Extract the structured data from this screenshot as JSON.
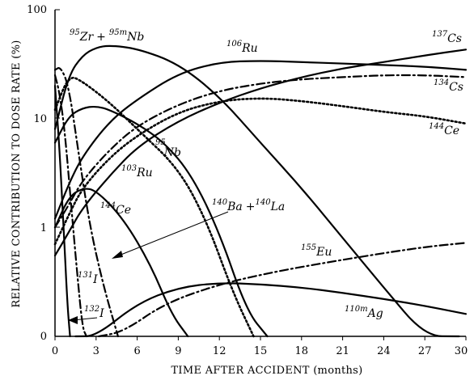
{
  "chart_data": {
    "type": "line",
    "title": "",
    "xlabel": "TIME AFTER ACCIDENT (months)",
    "ylabel": "RELATIVE CONTRIBUTION TO DOSE RATE (%)",
    "xlim": [
      0,
      30
    ],
    "ylim": [
      0,
      100
    ],
    "x_ticks": [
      "0",
      "3",
      "6",
      "9",
      "12",
      "15",
      "18",
      "21",
      "24",
      "27",
      "30"
    ],
    "y_ticks": [
      "0",
      "1",
      "10",
      "100"
    ],
    "y_scale": "log",
    "grid": false,
    "legend": "none",
    "series": [
      {
        "name": "137Cs",
        "label_sup": "137",
        "label_el": "Cs",
        "style": "solid",
        "x": [
          0,
          1,
          2,
          4,
          6,
          9,
          12,
          15,
          18,
          21,
          24,
          27,
          30
        ],
        "y": [
          0.55,
          0.9,
          1.5,
          3.0,
          5.5,
          9.5,
          14,
          19,
          24,
          29,
          33,
          38,
          43
        ]
      },
      {
        "name": "134Cs",
        "label_sup": "134",
        "label_el": "Cs",
        "style": "dashdot",
        "x": [
          0,
          1,
          2,
          4,
          6,
          9,
          12,
          15,
          18,
          21,
          24,
          27,
          30
        ],
        "y": [
          1.0,
          1.6,
          2.7,
          5.2,
          8.6,
          13.5,
          18,
          21,
          23,
          24,
          25,
          25,
          24
        ]
      },
      {
        "name": "144Ce",
        "label_sup": "144",
        "label_el": "Ce",
        "style": "dotted",
        "x": [
          0,
          1,
          2,
          4,
          6,
          9,
          12,
          15,
          18,
          21,
          24,
          27,
          30
        ],
        "y": [
          0.7,
          1.3,
          2.3,
          4.4,
          7.0,
          11.5,
          14.5,
          15.5,
          14.5,
          13,
          11.5,
          10.5,
          9
        ]
      },
      {
        "name": "106Ru",
        "label_sup": "106",
        "label_el": "Ru",
        "style": "solid",
        "x": [
          0,
          1,
          2,
          4,
          6,
          9,
          12,
          15,
          18,
          21,
          24,
          27,
          30
        ],
        "y": [
          1.2,
          2.5,
          4.5,
          9.5,
          15,
          26,
          33,
          34,
          33,
          32,
          31,
          30,
          28
        ]
      },
      {
        "name": "95Zr + 95mNb",
        "label_sup": "95",
        "label_el": "Zr",
        "style": "solid",
        "x": [
          0,
          1,
          2,
          3,
          4,
          6,
          9,
          12,
          15,
          18,
          21,
          24,
          27,
          29.5
        ],
        "y": [
          8,
          25,
          38,
          45,
          47,
          44,
          32,
          16,
          6,
          2.3,
          0.8,
          0.28,
          0.1,
          0.045
        ]
      },
      {
        "name": "95Nb",
        "label_sup": "95",
        "label_el": "Nb",
        "style": "dotted",
        "x": [
          0,
          1,
          2,
          4,
          6,
          9,
          11,
          13,
          14.5
        ],
        "y": [
          12,
          25,
          22,
          14,
          8,
          3.5,
          1.2,
          0.25,
          0.045
        ]
      },
      {
        "name": "103Ru",
        "label_sup": "103",
        "label_el": "Ru",
        "style": "solid",
        "x": [
          0,
          1,
          2,
          3,
          4,
          6,
          8,
          10,
          12,
          14,
          15.5
        ],
        "y": [
          6,
          10.5,
          12.5,
          13,
          12,
          9,
          6,
          3,
          0.9,
          0.17,
          0.045
        ]
      },
      {
        "name": "144Ce-small",
        "label_sup": "144",
        "label_el": "Ce",
        "style": "solid",
        "x": [
          0,
          1,
          2,
          3,
          5,
          7,
          8.5,
          9.7
        ],
        "y": [
          1.0,
          1.9,
          2.3,
          2.2,
          1.2,
          0.45,
          0.16,
          0.045
        ]
      },
      {
        "name": "140Ba + 140La",
        "label_sup": "140",
        "label_el": "Ba",
        "style": "dashdot",
        "x": [
          0,
          0.4,
          1,
          1.7,
          2.5,
          3.5,
          4.6
        ],
        "y": [
          28,
          30,
          20,
          5,
          1.1,
          0.3,
          0.045
        ]
      },
      {
        "name": "131I",
        "label_sup": "131",
        "label_el": "I",
        "style": "dashdot",
        "x": [
          0,
          0.3,
          0.7,
          1.2,
          1.6,
          2,
          2.3
        ],
        "y": [
          25,
          18,
          8,
          1.5,
          0.4,
          0.12,
          0.045
        ]
      },
      {
        "name": "132I",
        "label_sup": "132",
        "label_el": "I",
        "style": "solid",
        "x": [
          0,
          0.3,
          0.6,
          0.9,
          1.1
        ],
        "y": [
          20,
          6,
          1.2,
          0.2,
          0.045
        ]
      },
      {
        "name": "155Eu",
        "label_sup": "155",
        "label_el": "Eu",
        "style": "dashdot",
        "x": [
          3.2,
          5,
          8,
          12,
          16,
          20,
          24,
          27,
          30
        ],
        "y": [
          0.045,
          0.11,
          0.2,
          0.3,
          0.39,
          0.48,
          0.58,
          0.66,
          0.72
        ]
      },
      {
        "name": "110mAg",
        "label_sup": "110m",
        "label_el": "Ag",
        "style": "solid",
        "x": [
          1.5,
          3,
          6,
          9,
          12,
          15,
          18,
          21,
          24,
          27,
          30
        ],
        "y": [
          0.045,
          0.1,
          0.2,
          0.28,
          0.31,
          0.3,
          0.28,
          0.25,
          0.22,
          0.19,
          0.16
        ]
      }
    ],
    "labels": {
      "zr_sup1": "95",
      "zr_el1": "Zr",
      "zr_plus": "+",
      "zr_sup2": "95m",
      "zr_el2": "Nb",
      "ru106_sup": "106",
      "ru106_el": "Ru",
      "cs137_sup": "137",
      "cs137_el": "Cs",
      "cs134_sup": "134",
      "cs134_el": "Cs",
      "ce144a_sup": "144",
      "ce144a_el": "Ce",
      "nb95_sup": "95",
      "nb95_el": "Nb",
      "ru103_sup": "103",
      "ru103_el": "Ru",
      "ba_sup1": "140",
      "ba_el1": "Ba",
      "ba_plus": "+",
      "ba_sup2": "140",
      "ba_el2": "La",
      "ce144b_sup": "144",
      "ce144b_el": "Ce",
      "eu_sup": "155",
      "eu_el": "Eu",
      "i131_sup": "131",
      "i131_el": "I",
      "i132_sup": "132",
      "i132_el": "I",
      "ag_sup": "110m",
      "ag_el": "Ag"
    }
  }
}
